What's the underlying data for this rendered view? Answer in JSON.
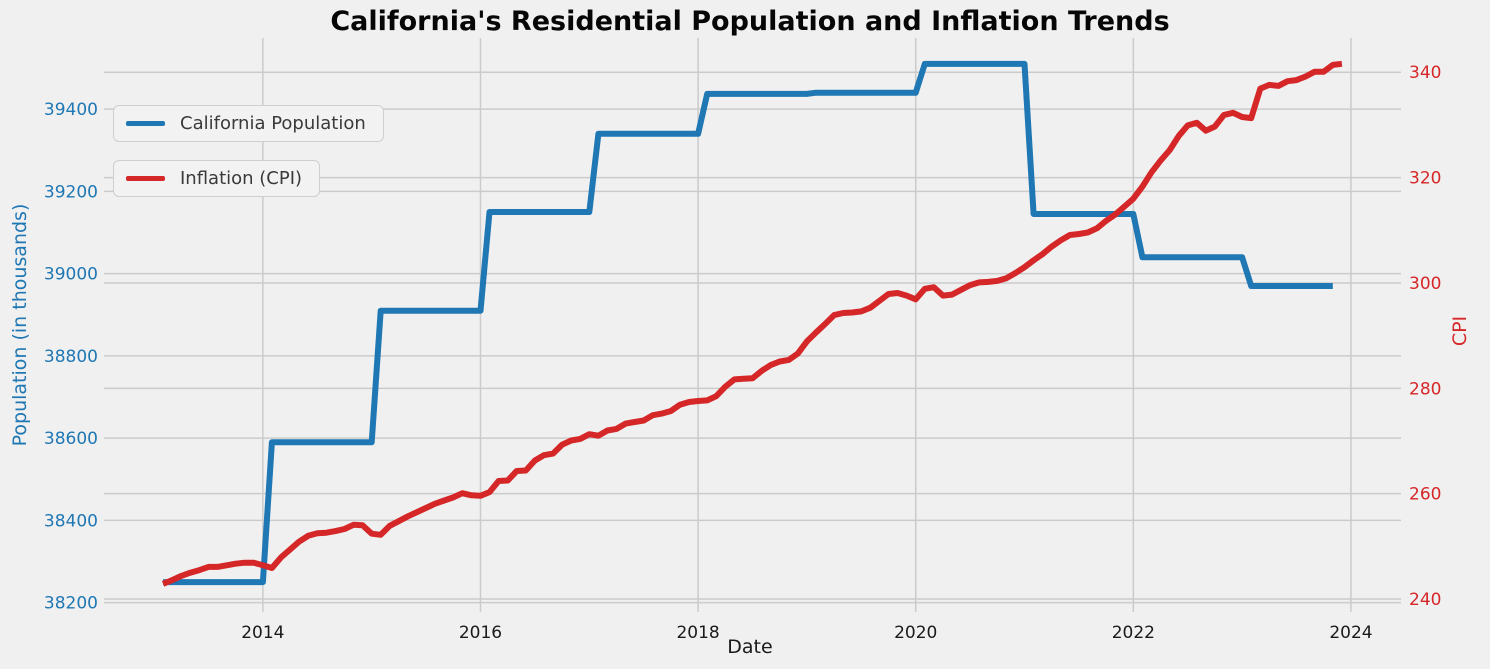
{
  "title": "California's Residential Population and Inflation Trends",
  "colors": {
    "background": "#f0f0f0",
    "grid": "#cbcbcb",
    "population_line": "#1f77b4",
    "cpi_line": "#d62728",
    "x_tick_text": "#1a1a1a",
    "title_text": "#060606"
  },
  "legend": {
    "position": "upper left",
    "entries": [
      {
        "label": "California Population",
        "color": "#1f77b4"
      },
      {
        "label": "Inflation (CPI)",
        "color": "#d62728"
      }
    ]
  },
  "chart_data": {
    "type": "line",
    "title": "California's Residential Population and Inflation Trends",
    "xlabel": "Date",
    "ylabel_left": "Population (in thousands)",
    "ylabel_right": "CPI",
    "grid": true,
    "x_start": {
      "year": 2013,
      "month": 2
    },
    "x_end": {
      "year": 2023,
      "month": 12
    },
    "xlim": [
      2012.54,
      2024.46
    ],
    "x_ticks": [
      2014,
      2016,
      2018,
      2020,
      2022,
      2024
    ],
    "left_axis": {
      "label": "Population (in thousands)",
      "ticks": [
        38200,
        38400,
        38600,
        38800,
        39000,
        39200,
        39400
      ],
      "lim": [
        38187,
        39573
      ],
      "color": "#1f77b4"
    },
    "right_axis": {
      "label": "CPI",
      "ticks": [
        240,
        260,
        280,
        300,
        320,
        340
      ],
      "lim": [
        238.3,
        346.5
      ],
      "color": "#d62728"
    },
    "series": [
      {
        "name": "California Population",
        "axis": "left",
        "color": "#1f77b4",
        "line_width": 6,
        "annual_values": {
          "2013": 38250,
          "2014": 38590,
          "2015": 38910,
          "2016": 39150,
          "2017": 39340,
          "2018": 39437,
          "2019": 39440,
          "2020": 39510,
          "2021": 39145,
          "2022": 39040,
          "2023": 38970
        },
        "monthly_values": [
          38250,
          38250,
          38250,
          38250,
          38250,
          38250,
          38250,
          38250,
          38250,
          38250,
          38250,
          38250,
          38590,
          38590,
          38590,
          38590,
          38590,
          38590,
          38590,
          38590,
          38590,
          38590,
          38590,
          38590,
          38910,
          38910,
          38910,
          38910,
          38910,
          38910,
          38910,
          38910,
          38910,
          38910,
          38910,
          38910,
          39150,
          39150,
          39150,
          39150,
          39150,
          39150,
          39150,
          39150,
          39150,
          39150,
          39150,
          39150,
          39340,
          39340,
          39340,
          39340,
          39340,
          39340,
          39340,
          39340,
          39340,
          39340,
          39340,
          39340,
          39437,
          39437,
          39437,
          39437,
          39437,
          39437,
          39437,
          39437,
          39437,
          39437,
          39437,
          39437,
          39440,
          39440,
          39440,
          39440,
          39440,
          39440,
          39440,
          39440,
          39440,
          39440,
          39440,
          39440,
          39510,
          39510,
          39510,
          39510,
          39510,
          39510,
          39510,
          39510,
          39510,
          39510,
          39510,
          39510,
          39145,
          39145,
          39145,
          39145,
          39145,
          39145,
          39145,
          39145,
          39145,
          39145,
          39145,
          39145,
          39040,
          39040,
          39040,
          39040,
          39040,
          39040,
          39040,
          39040,
          39040,
          39040,
          39040,
          39040,
          38970,
          38970,
          38970,
          38970,
          38970,
          38970,
          38970,
          38970,
          38970,
          38970
        ]
      },
      {
        "name": "Inflation (CPI)",
        "axis": "right",
        "color": "#d62728",
        "line_width": 6,
        "monthly_values": [
          242.9,
          243.6,
          244.4,
          245.0,
          245.5,
          246.1,
          246.1,
          246.4,
          246.7,
          246.9,
          246.9,
          246.4,
          245.9,
          247.9,
          249.4,
          250.9,
          252.0,
          252.5,
          252.6,
          252.9,
          253.3,
          254.1,
          254.0,
          252.4,
          252.2,
          253.9,
          254.8,
          255.7,
          256.5,
          257.3,
          258.1,
          258.7,
          259.3,
          260.1,
          259.7,
          259.6,
          260.3,
          262.4,
          262.5,
          264.3,
          264.4,
          266.3,
          267.3,
          267.6,
          269.3,
          270.1,
          270.4,
          271.3,
          271.0,
          272.0,
          272.3,
          273.3,
          273.6,
          273.9,
          274.9,
          275.2,
          275.7,
          276.9,
          277.4,
          277.6,
          277.7,
          278.5,
          280.3,
          281.7,
          281.8,
          281.9,
          283.3,
          284.4,
          285.1,
          285.4,
          286.6,
          288.9,
          290.6,
          292.2,
          293.9,
          294.3,
          294.4,
          294.6,
          295.3,
          296.6,
          297.9,
          298.1,
          297.6,
          296.9,
          298.9,
          299.2,
          297.6,
          297.8,
          298.7,
          299.6,
          300.1,
          300.2,
          300.4,
          300.9,
          301.9,
          303.0,
          304.3,
          305.5,
          306.9,
          308.1,
          309.1,
          309.3,
          309.6,
          310.4,
          311.8,
          313.0,
          314.5,
          316.0,
          318.3,
          321.0,
          323.2,
          325.2,
          327.9,
          329.9,
          330.4,
          328.9,
          329.7,
          331.9,
          332.3,
          331.5,
          331.3,
          336.9,
          337.6,
          337.4,
          338.3,
          338.5,
          339.2,
          340.1,
          340.1,
          341.4,
          341.6
        ]
      }
    ]
  }
}
